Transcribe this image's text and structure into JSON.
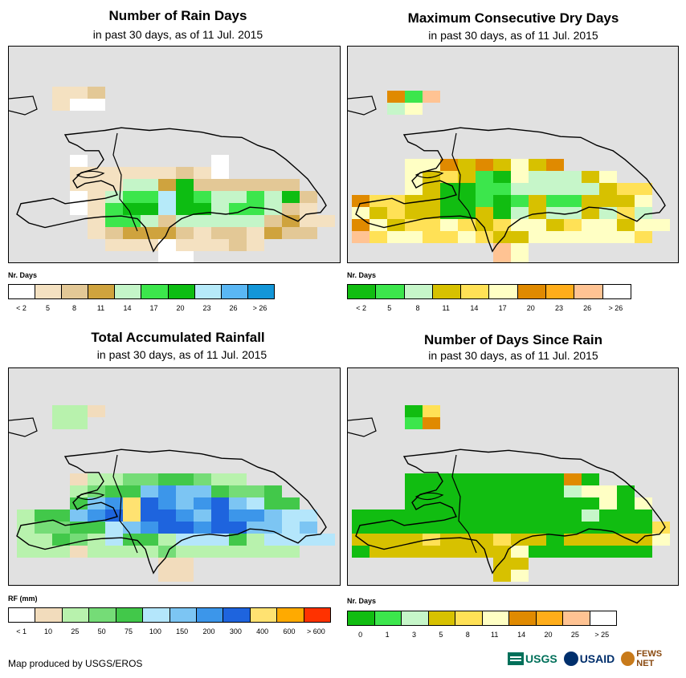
{
  "footer": {
    "credit": "Map produced by USGS/EROS",
    "logos": [
      "USGS",
      "USAID",
      "FEWS NET"
    ]
  },
  "chart_data": [
    {
      "type": "heatmap",
      "title": "Number of Rain Days",
      "subtitle": "in past 30 days, as of 11 Jul. 2015",
      "legend_title": "Nr. Days",
      "legend_labels": [
        "< 2",
        "5",
        "8",
        "11",
        "14",
        "17",
        "20",
        "23",
        "26",
        "> 26"
      ],
      "legend_colors": [
        "#ffffff",
        "#f4e1c1",
        "#e3c896",
        "#cfa33e",
        "#c4f5c8",
        "#3ce64c",
        "#0dbd12",
        "#b6eaf9",
        "#5ab7f4",
        "#1396d8"
      ],
      "grid_origin": [
        65,
        50
      ],
      "cell_size": [
        22.5,
        15
      ],
      "rows": [
        "..111......",
        "..0.......",
        "..00.......",
        "..........",
        "..........",
        "..........",
        "..........",
        "..00.0...11",
        ".111..111111",
        ".1112111",
        "1..1111111111.",
        "1..111.33111.111",
        "1..54466126221111",
        "0..55464411211",
        ".0.5666.66.551",
        "..15.66776656641",
        "...5566.4412...",
        "...444.1.1111..",
        "...3..22.2222...",
        "...33..333.....",
        "..12223....111..1",
        "...1112111311..",
        "....00",
        "....00..1",
        "....11"
      ]
    },
    {
      "type": "heatmap",
      "title": "Maximum Consecutive Dry Days",
      "subtitle": "in past 30 days, as of 11 Jul. 2015",
      "legend_title": "Nr. Days",
      "legend_labels": [
        "< 2",
        "5",
        "8",
        "11",
        "14",
        "17",
        "20",
        "23",
        "26",
        "> 26"
      ],
      "legend_colors": [
        "#11bd11",
        "#3ce64c",
        "#c6f6c9",
        "#d7c100",
        "#ffe156",
        "#ffffc4",
        "#e08a00",
        "#ffad1a",
        "#ffc393",
        "#ffffff"
      ],
      "grid_origin": [
        40,
        50
      ]
    },
    {
      "type": "heatmap",
      "title": "Total Accumulated Rainfall",
      "subtitle": "in past 30 days, as of 11 Jul. 2015",
      "legend_title": "RF (mm)",
      "legend_labels": [
        "< 1",
        "10",
        "25",
        "50",
        "75",
        "100",
        "150",
        "200",
        "300",
        "400",
        "600",
        "> 600"
      ],
      "legend_colors": [
        "#ffffff",
        "#f2dcbc",
        "#b8f2ad",
        "#75dc77",
        "#42c84a",
        "#b4e6fb",
        "#7cc5f3",
        "#3c96ea",
        "#1e64de",
        "#ffe271",
        "#ffaa00",
        "#ff3200"
      ]
    },
    {
      "type": "heatmap",
      "title": "Number of Days Since Rain",
      "subtitle": "in past 30 days, as of 11 Jul. 2015",
      "legend_title": "Nr. Days",
      "legend_labels": [
        "0",
        "1",
        "3",
        "5",
        "8",
        "11",
        "14",
        "20",
        "25",
        "> 25"
      ],
      "legend_colors": [
        "#11bd11",
        "#3ce64c",
        "#c6f6c9",
        "#d7c100",
        "#ffe156",
        "#ffffc4",
        "#e08a00",
        "#ffad1a",
        "#ffc393",
        "#ffffff"
      ]
    }
  ]
}
